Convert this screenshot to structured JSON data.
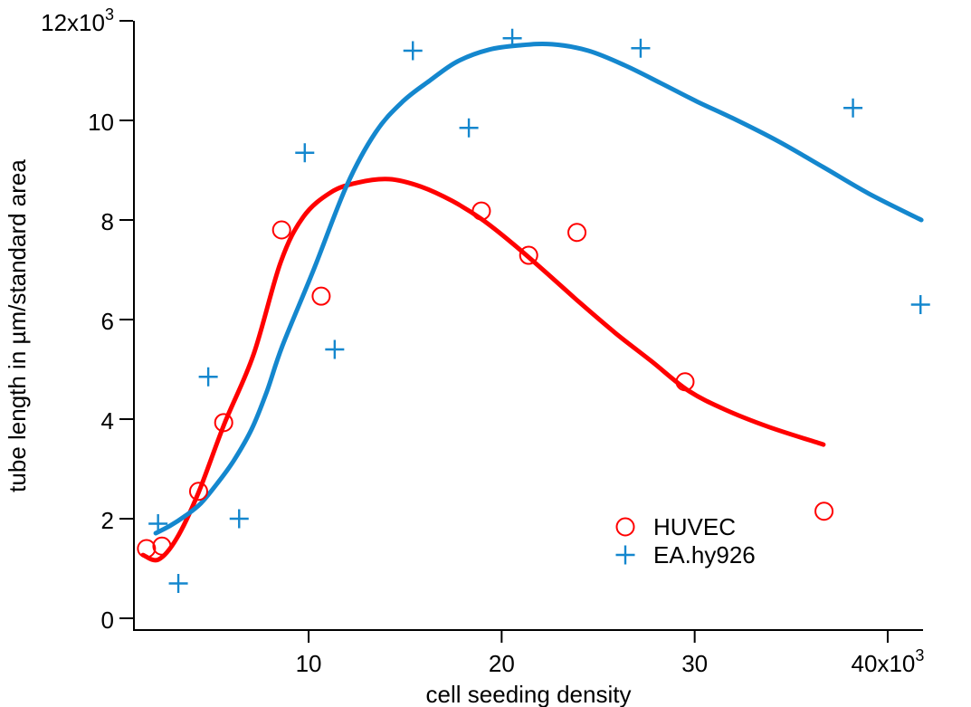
{
  "chart_data": {
    "type": "scatter",
    "title": "",
    "xlabel": "cell seeding density",
    "ylabel": "tube length in µm/standard area",
    "xlim": [
      950,
      41830
    ],
    "ylim": [
      0,
      12000
    ],
    "grid": false,
    "legend_position": "inside-lower-right",
    "x_ticks": [
      {
        "value": 10000,
        "label": "10"
      },
      {
        "value": 20000,
        "label": "20"
      },
      {
        "value": 30000,
        "label": "30"
      },
      {
        "value": 40000,
        "label": "40x10",
        "sup": "3"
      }
    ],
    "y_ticks": [
      {
        "value": 0,
        "label": "0"
      },
      {
        "value": 2000,
        "label": "2"
      },
      {
        "value": 4000,
        "label": "4"
      },
      {
        "value": 6000,
        "label": "6"
      },
      {
        "value": 8000,
        "label": "8"
      },
      {
        "value": 10000,
        "label": "10"
      },
      {
        "value": 12000,
        "label": "12x10",
        "sup": "3"
      }
    ],
    "series": [
      {
        "name": "HUVEC",
        "marker": "circle",
        "color": "#ff0000",
        "points": [
          [
            1600,
            1400
          ],
          [
            2400,
            1450
          ],
          [
            4300,
            2550
          ],
          [
            5600,
            3930
          ],
          [
            8600,
            7800
          ],
          [
            10650,
            6470
          ],
          [
            18950,
            8180
          ],
          [
            21400,
            7290
          ],
          [
            23900,
            7750
          ],
          [
            29500,
            4750
          ],
          [
            36700,
            2150
          ]
        ],
        "fit_curve": [
          [
            1420,
            1270
          ],
          [
            2220,
            1180
          ],
          [
            3160,
            1600
          ],
          [
            4280,
            2510
          ],
          [
            5640,
            3910
          ],
          [
            7140,
            5290
          ],
          [
            8550,
            7150
          ],
          [
            9720,
            8060
          ],
          [
            11130,
            8550
          ],
          [
            12530,
            8750
          ],
          [
            14170,
            8820
          ],
          [
            15810,
            8670
          ],
          [
            17450,
            8380
          ],
          [
            18950,
            8020
          ],
          [
            20500,
            7550
          ],
          [
            22140,
            7000
          ],
          [
            24020,
            6350
          ],
          [
            25890,
            5730
          ],
          [
            27770,
            5160
          ],
          [
            29640,
            4580
          ],
          [
            31520,
            4200
          ],
          [
            33860,
            3840
          ],
          [
            36670,
            3490
          ]
        ]
      },
      {
        "name": "EA.hy926",
        "marker": "plus",
        "color": "#1487ce",
        "points": [
          [
            2200,
            1900
          ],
          [
            3250,
            700
          ],
          [
            4800,
            4850
          ],
          [
            6400,
            2000
          ],
          [
            9800,
            9350
          ],
          [
            11350,
            5400
          ],
          [
            15400,
            11400
          ],
          [
            18300,
            9850
          ],
          [
            20550,
            11650
          ],
          [
            27200,
            11450
          ],
          [
            38200,
            10250
          ],
          [
            41700,
            6300
          ]
        ],
        "fit_curve": [
          [
            2080,
            1710
          ],
          [
            2830,
            1860
          ],
          [
            3620,
            2060
          ],
          [
            4420,
            2310
          ],
          [
            5270,
            2710
          ],
          [
            6110,
            3160
          ],
          [
            7050,
            3800
          ],
          [
            7840,
            4560
          ],
          [
            8640,
            5470
          ],
          [
            10280,
            7020
          ],
          [
            11970,
            8690
          ],
          [
            13470,
            9760
          ],
          [
            14880,
            10380
          ],
          [
            16280,
            10800
          ],
          [
            17690,
            11180
          ],
          [
            19330,
            11420
          ],
          [
            20970,
            11510
          ],
          [
            22610,
            11530
          ],
          [
            24490,
            11400
          ],
          [
            26360,
            11110
          ],
          [
            28240,
            10750
          ],
          [
            30110,
            10380
          ],
          [
            31990,
            10040
          ],
          [
            34330,
            9580
          ],
          [
            36670,
            9060
          ],
          [
            39020,
            8530
          ],
          [
            41740,
            8000
          ]
        ]
      }
    ]
  }
}
